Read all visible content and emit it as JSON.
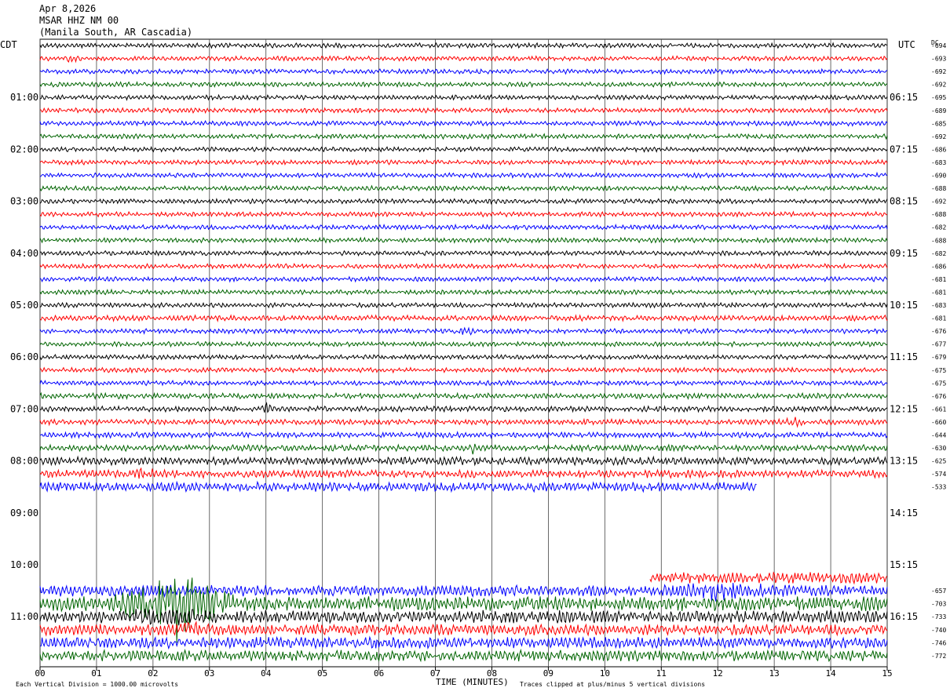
{
  "header": {
    "date": "Apr 8,2026",
    "station": "MSAR HHZ NM 00",
    "location": "(Manila South, AR Cascadia)"
  },
  "left_axis_label": "CDT",
  "right_axis_label": "UTC",
  "dc_label": "DC",
  "footer": {
    "scale_note": "Each Vertical Division = 1000.00 microvolts",
    "x_axis_title": "TIME (MINUTES)",
    "clip_note": "Traces clipped at plus/minus 5 vertical divisions"
  },
  "colors": {
    "trace_cycle": [
      "#000000",
      "#ff0000",
      "#0000ff",
      "#006400"
    ],
    "grid": "#000000",
    "background": "#ffffff"
  },
  "chart_data": {
    "type": "helicorder",
    "x_ticks": [
      "00",
      "01",
      "02",
      "03",
      "04",
      "05",
      "06",
      "07",
      "08",
      "09",
      "10",
      "11",
      "12",
      "13",
      "14",
      "15"
    ],
    "x_range_minutes": [
      0,
      15
    ],
    "left_time_labels": [
      "01:00",
      "02:00",
      "03:00",
      "04:00",
      "05:00",
      "06:00",
      "07:00",
      "08:00",
      "09:00",
      "10:00",
      "11:00"
    ],
    "right_time_labels": [
      "06:15",
      "07:15",
      "08:15",
      "09:15",
      "10:15",
      "11:15",
      "12:15",
      "13:15",
      "14:15",
      "15:15",
      "16:15"
    ],
    "rows_per_hour": 4,
    "minutes_per_row": 15,
    "rows": [
      {
        "dc": "-694",
        "color": "#000000",
        "amp": 3,
        "start_min": 0,
        "end_min": 15
      },
      {
        "dc": "-693",
        "color": "#ff0000",
        "amp": 3,
        "start_min": 0,
        "end_min": 15,
        "burst": {
          "min": 0.4,
          "len": 0.4,
          "amp": 8
        }
      },
      {
        "dc": "-692",
        "color": "#0000ff",
        "amp": 3,
        "start_min": 0,
        "end_min": 15
      },
      {
        "dc": "-692",
        "color": "#006400",
        "amp": 3,
        "start_min": 0,
        "end_min": 15
      },
      {
        "dc": "-695",
        "color": "#000000",
        "amp": 3,
        "start_min": 0,
        "end_min": 15
      },
      {
        "dc": "-689",
        "color": "#ff0000",
        "amp": 3,
        "start_min": 0,
        "end_min": 15
      },
      {
        "dc": "-685",
        "color": "#0000ff",
        "amp": 3,
        "start_min": 0,
        "end_min": 15
      },
      {
        "dc": "-692",
        "color": "#006400",
        "amp": 3,
        "start_min": 0,
        "end_min": 15
      },
      {
        "dc": "-686",
        "color": "#000000",
        "amp": 3,
        "start_min": 0,
        "end_min": 15
      },
      {
        "dc": "-683",
        "color": "#ff0000",
        "amp": 3,
        "start_min": 0,
        "end_min": 15
      },
      {
        "dc": "-690",
        "color": "#0000ff",
        "amp": 3,
        "start_min": 0,
        "end_min": 15
      },
      {
        "dc": "-688",
        "color": "#006400",
        "amp": 3,
        "start_min": 0,
        "end_min": 15
      },
      {
        "dc": "-692",
        "color": "#000000",
        "amp": 3,
        "start_min": 0,
        "end_min": 15
      },
      {
        "dc": "-688",
        "color": "#ff0000",
        "amp": 3,
        "start_min": 0,
        "end_min": 15
      },
      {
        "dc": "-682",
        "color": "#0000ff",
        "amp": 3,
        "start_min": 0,
        "end_min": 15
      },
      {
        "dc": "-688",
        "color": "#006400",
        "amp": 3,
        "start_min": 0,
        "end_min": 15
      },
      {
        "dc": "-682",
        "color": "#000000",
        "amp": 3,
        "start_min": 0,
        "end_min": 15
      },
      {
        "dc": "-686",
        "color": "#ff0000",
        "amp": 3,
        "start_min": 0,
        "end_min": 15
      },
      {
        "dc": "-681",
        "color": "#0000ff",
        "amp": 3,
        "start_min": 0,
        "end_min": 15
      },
      {
        "dc": "-681",
        "color": "#006400",
        "amp": 3,
        "start_min": 0,
        "end_min": 15
      },
      {
        "dc": "-683",
        "color": "#000000",
        "amp": 3,
        "start_min": 0,
        "end_min": 15
      },
      {
        "dc": "-681",
        "color": "#ff0000",
        "amp": 3.5,
        "start_min": 0,
        "end_min": 15
      },
      {
        "dc": "-676",
        "color": "#0000ff",
        "amp": 3,
        "start_min": 0,
        "end_min": 15,
        "burst": {
          "min": 7.4,
          "len": 0.3,
          "amp": 7
        }
      },
      {
        "dc": "-677",
        "color": "#006400",
        "amp": 3,
        "start_min": 0,
        "end_min": 15
      },
      {
        "dc": "-679",
        "color": "#000000",
        "amp": 3,
        "start_min": 0,
        "end_min": 15
      },
      {
        "dc": "-675",
        "color": "#ff0000",
        "amp": 3,
        "start_min": 0,
        "end_min": 15
      },
      {
        "dc": "-675",
        "color": "#0000ff",
        "amp": 3,
        "start_min": 0,
        "end_min": 15
      },
      {
        "dc": "-676",
        "color": "#006400",
        "amp": 3.5,
        "start_min": 0,
        "end_min": 15
      },
      {
        "dc": "-661",
        "color": "#000000",
        "amp": 3.5,
        "start_min": 0,
        "end_min": 15,
        "burst": {
          "min": 3.9,
          "len": 0.25,
          "amp": 9
        }
      },
      {
        "dc": "-660",
        "color": "#ff0000",
        "amp": 3.5,
        "start_min": 0,
        "end_min": 15,
        "burst": {
          "min": 13.2,
          "len": 0.35,
          "amp": 9
        }
      },
      {
        "dc": "-644",
        "color": "#0000ff",
        "amp": 3.5,
        "start_min": 0,
        "end_min": 15
      },
      {
        "dc": "-630",
        "color": "#006400",
        "amp": 4,
        "start_min": 0,
        "end_min": 15,
        "burst": {
          "min": 7.5,
          "len": 0.35,
          "amp": 11
        }
      },
      {
        "dc": "-625",
        "color": "#000000",
        "amp": 5,
        "start_min": 0,
        "end_min": 15
      },
      {
        "dc": "-574",
        "color": "#ff0000",
        "amp": 5,
        "start_min": 0,
        "end_min": 15,
        "burst": {
          "min": 1.6,
          "len": 0.5,
          "amp": 9
        }
      },
      {
        "dc": "-533",
        "color": "#0000ff",
        "amp": 6,
        "start_min": 0,
        "end_min": 12.7
      },
      {
        "dc": "",
        "color": "#006400",
        "amp": 0,
        "start_min": 0,
        "end_min": 0
      },
      {
        "dc": "",
        "color": "#000000",
        "amp": 0,
        "start_min": 0,
        "end_min": 0
      },
      {
        "dc": "",
        "color": "#ff0000",
        "amp": 0,
        "start_min": 0,
        "end_min": 0
      },
      {
        "dc": "",
        "color": "#0000ff",
        "amp": 0,
        "start_min": 0,
        "end_min": 0
      },
      {
        "dc": "",
        "color": "#006400",
        "amp": 0,
        "start_min": 0,
        "end_min": 0
      },
      {
        "dc": "",
        "color": "#000000",
        "amp": 0,
        "start_min": 0,
        "end_min": 0
      },
      {
        "dc": "",
        "color": "#ff0000",
        "amp": 7,
        "start_min": 10.8,
        "end_min": 15
      },
      {
        "dc": "-657",
        "color": "#0000ff",
        "amp": 7,
        "start_min": 0,
        "end_min": 15,
        "burst": {
          "min": 10.8,
          "len": 2.6,
          "amp": 12
        }
      },
      {
        "dc": "-703",
        "color": "#006400",
        "amp": 9,
        "start_min": 0,
        "end_min": 15,
        "burst": {
          "min": 1.2,
          "len": 2.4,
          "amp": 40
        }
      },
      {
        "dc": "-733",
        "color": "#000000",
        "amp": 8,
        "start_min": 0,
        "end_min": 15,
        "burst": {
          "min": 1.4,
          "len": 1.8,
          "amp": 14
        }
      },
      {
        "dc": "-740",
        "color": "#ff0000",
        "amp": 7,
        "start_min": 0,
        "end_min": 15,
        "burst": {
          "min": 2.2,
          "len": 0.8,
          "amp": 12
        }
      },
      {
        "dc": "-746",
        "color": "#0000ff",
        "amp": 7,
        "start_min": 0,
        "end_min": 15
      },
      {
        "dc": "-772",
        "color": "#006400",
        "amp": 7,
        "start_min": 0,
        "end_min": 15
      }
    ]
  }
}
